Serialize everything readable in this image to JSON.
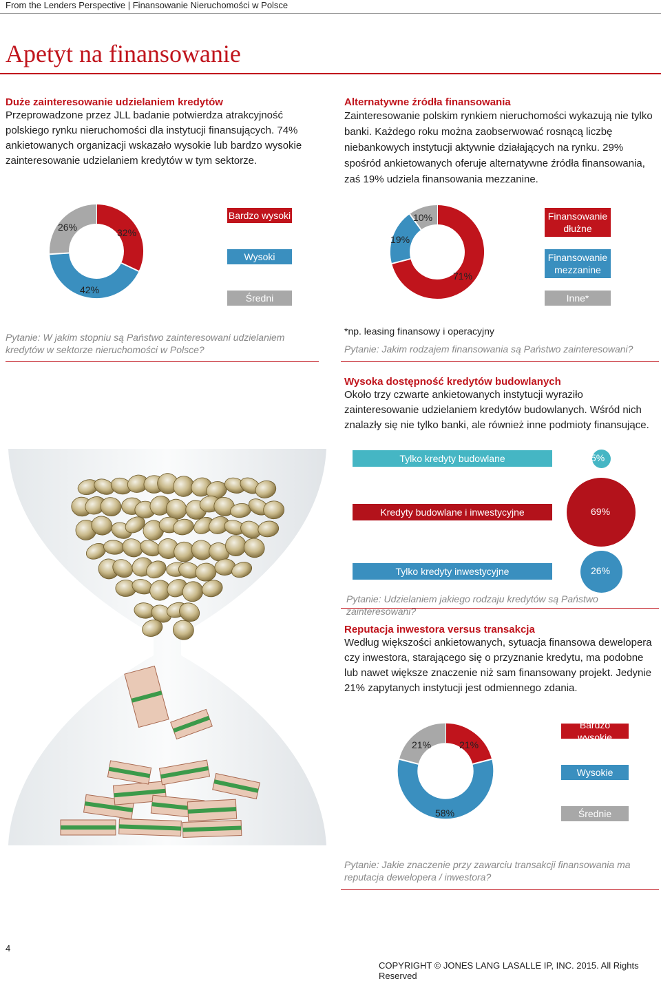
{
  "header": {
    "text": "From the Lenders Perspective | Finansowanie Nieruchomości w Polsce"
  },
  "page_title": "Apetyt na finansowanie",
  "section1": {
    "heading": "Duże zainteresowanie udzielaniem kredytów",
    "body": "Przeprowadzone przez JLL badanie potwierdza atrakcyjność polskiego rynku nieruchomości dla instytucji finansujących. 74% ankietowanych organizacji wskazało wysokie lub bardzo wysokie zainteresowanie udzielaniem kredytów w tym sektorze."
  },
  "section2": {
    "heading": "Alternatywne źródła finansowania",
    "body": "Zainteresowanie polskim rynkiem nieruchomości wykazują nie tylko banki. Każdego roku można zaobserwować rosnącą liczbę niebankowych instytucji aktywnie działających na rynku. 29% spośród ankietowanych oferuje alternatywne źródła finansowania, zaś 19% udziela finansowania mezzanine."
  },
  "colors": {
    "red": "#c0141c",
    "blue": "#3a8fbf",
    "gray": "#a8a8a8",
    "teal": "#45b6c4",
    "darkred": "#b3121b"
  },
  "chart_data": [
    {
      "type": "pie",
      "categories": [
        "Bardzo wysoki",
        "Wysoki",
        "Średni"
      ],
      "values": [
        32,
        42,
        26
      ],
      "labels": [
        "32%",
        "42%",
        "26%"
      ],
      "question": "Pytanie: W jakim stopniu są Państwo zainteresowani udzielaniem kredytów w sektorze nieruchomości w Polsce?"
    },
    {
      "type": "pie",
      "categories": [
        "Finansowanie dłużne",
        "Finansowanie mezzanine",
        "Inne*"
      ],
      "values": [
        71,
        19,
        10
      ],
      "labels": [
        "71%",
        "19%",
        "10%"
      ],
      "footnote": "*np. leasing finansowy i operacyjny",
      "question": "Pytanie: Jakim rodzajem finansowania są Państwo zainteresowani?"
    },
    {
      "type": "bar",
      "categories": [
        "Tylko kredyty budowlane",
        "Kredyty budowlane i inwestycyjne",
        "Tylko kredyty inwestycyjne"
      ],
      "values": [
        5,
        69,
        26
      ],
      "labels": [
        "5%",
        "69%",
        "26%"
      ],
      "question": "Pytanie: Udzielaniem jakiego rodzaju kredytów są Państwo zainteresowani?"
    },
    {
      "type": "pie",
      "categories": [
        "Bardzo wysokie",
        "Wysokie",
        "Średnie"
      ],
      "values": [
        21,
        58,
        21
      ],
      "labels": [
        "21%",
        "58%",
        "21%"
      ],
      "question": "Pytanie: Jakie znaczenie przy zawarciu transakcji finansowania ma reputacja dewelopera / inwestora?"
    }
  ],
  "section3": {
    "heading": "Wysoka dostępność kredytów budowlanych",
    "body": "Około trzy czwarte ankietowanych instytucji wyraziło zainteresowanie udzielaniem kredytów budowlanych. Wśród nich znalazły się nie tylko banki, ale również inne podmioty finansujące."
  },
  "section4": {
    "heading": "Reputacja inwestora versus transakcja",
    "body": "Według większości ankietowanych, sytuacja finansowa dewelopera czy inwestora, starającego się o przyznanie kredytu, ma podobne lub nawet większe znaczenie niż sam finansowany projekt. Jedynie 21% zapytanych instytucji jest odmiennego zdania."
  },
  "image": {
    "icon": "hourglass-coins-icon"
  },
  "footer": {
    "page_number": "4",
    "copyright": "COPYRIGHT © JONES LANG LASALLE IP, INC. 2015. All Rights Reserved"
  }
}
